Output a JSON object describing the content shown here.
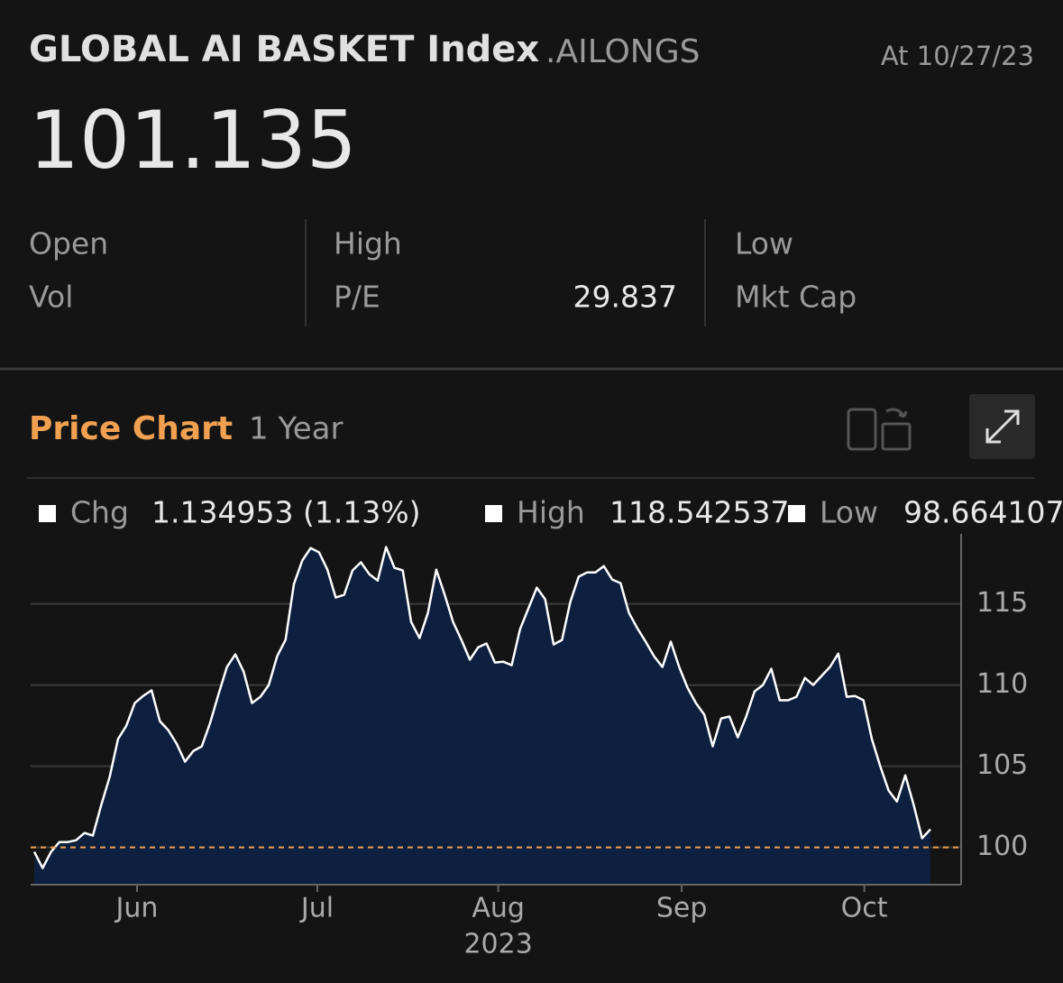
{
  "header": {
    "title": "GLOBAL AI BASKET Index",
    "ticker": ".AILONGS",
    "date": "At 10/27/23",
    "price": "101.135"
  },
  "stats": {
    "open": "Open",
    "high": "High",
    "low": "Low",
    "vol": "Vol",
    "pe_label": "P/E",
    "pe_value": "29.837",
    "mkt_cap": "Mkt Cap"
  },
  "chart_header": {
    "title": "Price Chart",
    "period": "1 Year"
  },
  "legend": {
    "chg_label": "Chg",
    "chg_value": "1.134953 (1.13%)",
    "high_label": "High",
    "high_value": "118.542537",
    "low_label": "Low",
    "low_value": "98.664107"
  },
  "chart_data": {
    "type": "area",
    "color": "#ffffff",
    "fill": "#0e203f",
    "grid": true,
    "reference_line": 100,
    "reference_color": "#f0a050",
    "xlabel": "2023",
    "xlim": [
      0,
      107
    ],
    "xticks": [
      {
        "value": 12.27,
        "label": "Jun"
      },
      {
        "value": 33.8,
        "label": "Jul"
      },
      {
        "value": 55.4,
        "label": "Aug"
      },
      {
        "value": 77.3,
        "label": "Sep"
      },
      {
        "value": 99.1,
        "label": "Oct"
      }
    ],
    "ylim": [
      97.7,
      119.2
    ],
    "yticks": [
      100,
      105,
      110,
      115
    ],
    "values": [
      99.72,
      98.72,
      99.72,
      100.33,
      100.33,
      100.44,
      100.89,
      100.72,
      102.61,
      104.33,
      106.67,
      107.5,
      108.89,
      109.33,
      109.67,
      107.78,
      107.22,
      106.39,
      105.28,
      105.94,
      106.22,
      107.67,
      109.44,
      111.11,
      111.89,
      110.83,
      108.89,
      109.28,
      110,
      111.78,
      112.78,
      116.22,
      117.67,
      118.44,
      118.17,
      117.11,
      115.39,
      115.56,
      117.06,
      117.56,
      116.83,
      116.44,
      118.5,
      117.22,
      117.06,
      113.89,
      112.89,
      114.44,
      117.11,
      115.56,
      113.89,
      112.78,
      111.56,
      112.33,
      112.56,
      111.39,
      111.44,
      111.22,
      113.44,
      114.72,
      116,
      115.28,
      112.5,
      112.78,
      115.11,
      116.67,
      116.94,
      116.94,
      117.33,
      116.5,
      116.28,
      114.44,
      113.5,
      112.67,
      111.78,
      111.11,
      112.67,
      111.11,
      109.83,
      108.89,
      108.17,
      106.22,
      107.94,
      108.06,
      106.78,
      108.06,
      109.61,
      110,
      111,
      109.06,
      109.06,
      109.28,
      110.44,
      110,
      110.56,
      111.11,
      111.94,
      109.28,
      109.33,
      109.06,
      106.67,
      105,
      103.5,
      102.83,
      104.44,
      102.61,
      100.56,
      101.11
    ]
  }
}
